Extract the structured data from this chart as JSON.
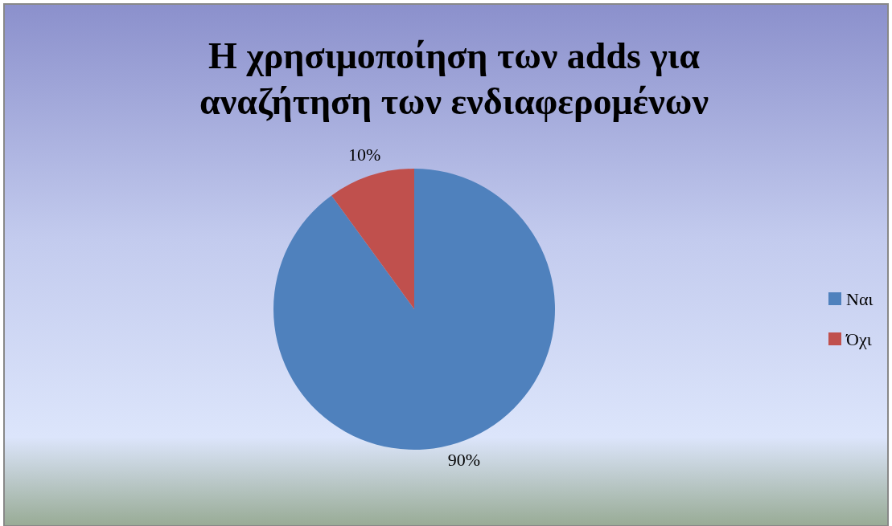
{
  "chart_data": {
    "type": "pie",
    "title": "Η χρησιμοποίηση των adds για\nαναζήτηση των ενδιαφερομένων",
    "categories": [
      "Ναι",
      "Όχι"
    ],
    "values": [
      90,
      10
    ],
    "colors": [
      "#4f81bd",
      "#c0504d"
    ],
    "value_labels": [
      "90%",
      "10%"
    ],
    "legend": "right"
  }
}
